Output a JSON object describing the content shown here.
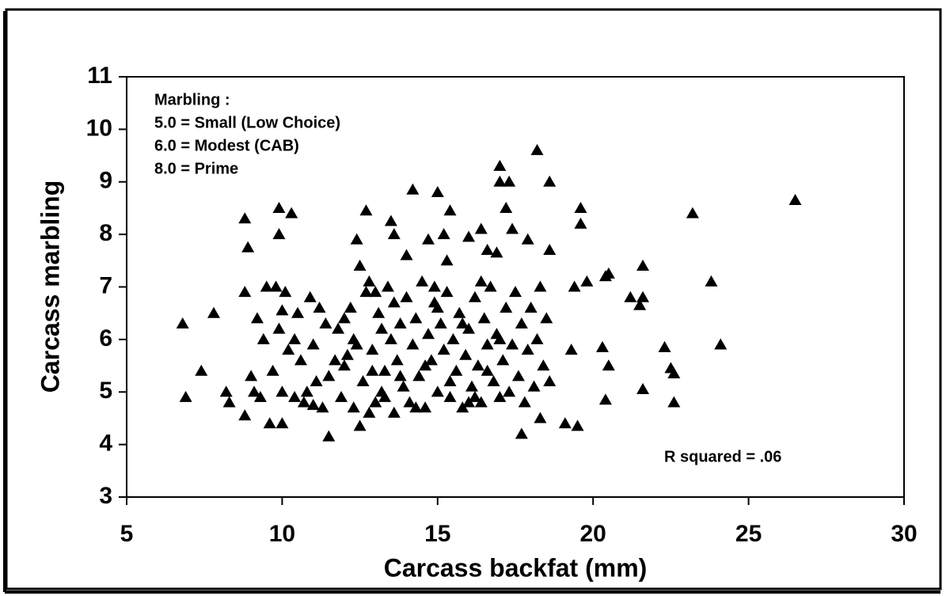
{
  "chart_data": {
    "type": "scatter",
    "xlabel": "Carcass backfat (mm)",
    "ylabel": "Carcass marbling",
    "notes": [
      "Marbling :",
      "5.0 = Small (Low Choice)",
      "6.0 = Modest (CAB)",
      "8.0 = Prime"
    ],
    "annotation": "R squared = .06",
    "color": "#000000",
    "marker": "triangle",
    "xlim": [
      5,
      30
    ],
    "xticks": [
      5,
      10,
      15,
      20,
      25,
      30
    ],
    "ylim": [
      3,
      11
    ],
    "yticks": [
      3,
      4,
      5,
      6,
      7,
      8,
      9,
      10,
      11
    ],
    "x": [
      6.8,
      6.9,
      7.4,
      7.8,
      8.2,
      8.3,
      8.8,
      8.9,
      8.8,
      8.8,
      9.0,
      9.2,
      9.3,
      9.5,
      9.6,
      9.9,
      9.9,
      9.8,
      10.0,
      10.0,
      10.0,
      10.3,
      10.4,
      10.6,
      10.9,
      11.0,
      11.5,
      11.4,
      12.0,
      12.3,
      12.4,
      12.5,
      12.7,
      12.8,
      13.0,
      13.2,
      13.6,
      13.5,
      14.2,
      14.0,
      14.7,
      15.0,
      15.2,
      15.4,
      15.3,
      16.0,
      16.4,
      16.6,
      16.9,
      17.0,
      17.0,
      17.2,
      17.3,
      17.4,
      17.9,
      18.2,
      18.6,
      18.6,
      19.6,
      19.6,
      19.4,
      19.8,
      19.3,
      19.1,
      19.5,
      20.4,
      20.5,
      20.3,
      20.5,
      20.4,
      21.2,
      21.5,
      21.6,
      21.6,
      21.6,
      22.3,
      22.5,
      22.6,
      22.6,
      23.2,
      23.8,
      24.1,
      26.5,
      17.7,
      18.3,
      16.0,
      12.5,
      10.5,
      10.2,
      10.8,
      11.0,
      11.2,
      11.5,
      11.8,
      11.9,
      12.1,
      12.2,
      12.3,
      12.6,
      12.7,
      12.9,
      13.1,
      13.2,
      13.3,
      13.4,
      13.5,
      13.6,
      13.7,
      13.8,
      13.9,
      14.0,
      14.1,
      14.2,
      14.3,
      14.4,
      14.5,
      14.6,
      14.7,
      14.8,
      14.9,
      15.0,
      15.1,
      15.2,
      15.3,
      15.4,
      15.5,
      15.6,
      15.7,
      15.8,
      15.9,
      16.0,
      16.1,
      16.2,
      16.3,
      16.4,
      16.5,
      16.6,
      16.7,
      16.8,
      16.9,
      17.0,
      17.1,
      17.2,
      17.3,
      17.4,
      17.5,
      17.6,
      17.7,
      17.8,
      17.9,
      18.0,
      18.1,
      18.2,
      18.3,
      18.4,
      18.5,
      18.6,
      10.1,
      9.4,
      9.1,
      9.7,
      10.7,
      11.3,
      11.7,
      12.0,
      12.4,
      13.0,
      13.3,
      13.8,
      14.3,
      14.6,
      15.0,
      15.4,
      15.8,
      16.2,
      16.6,
      17.0,
      12.8,
      11.1,
      10.4,
      9.9,
      14.9,
      16.4,
      13.6,
      12.9
    ],
    "y": [
      6.3,
      4.9,
      5.4,
      6.5,
      5.0,
      4.8,
      8.3,
      7.75,
      6.9,
      4.55,
      5.3,
      6.4,
      4.9,
      7.0,
      4.4,
      8.5,
      8.0,
      7.0,
      6.55,
      5.0,
      4.4,
      8.4,
      6.0,
      5.6,
      6.8,
      4.75,
      4.15,
      6.3,
      5.5,
      6.0,
      7.9,
      7.4,
      8.45,
      7.1,
      4.8,
      6.2,
      8.0,
      8.25,
      8.85,
      7.6,
      7.9,
      8.8,
      8.0,
      8.45,
      7.5,
      7.95,
      8.1,
      7.7,
      7.65,
      9.3,
      9.0,
      8.5,
      9.0,
      8.1,
      7.9,
      9.6,
      9.0,
      7.7,
      8.5,
      8.2,
      7.0,
      7.1,
      5.8,
      4.4,
      4.35,
      7.2,
      7.25,
      5.85,
      5.5,
      4.85,
      6.8,
      6.65,
      6.8,
      7.4,
      5.05,
      5.85,
      5.45,
      5.35,
      4.8,
      8.4,
      7.1,
      5.9,
      8.65,
      4.2,
      4.5,
      4.8,
      4.35,
      6.5,
      5.8,
      5.0,
      5.9,
      6.6,
      5.3,
      6.2,
      4.9,
      5.7,
      6.6,
      4.7,
      5.2,
      6.9,
      5.8,
      6.5,
      5.0,
      5.4,
      7.0,
      6.0,
      4.6,
      5.6,
      6.3,
      5.1,
      6.8,
      4.8,
      5.9,
      6.4,
      5.3,
      7.1,
      4.7,
      6.1,
      5.6,
      6.7,
      5.0,
      6.3,
      5.8,
      6.9,
      4.9,
      6.0,
      5.4,
      6.5,
      4.7,
      5.7,
      6.2,
      5.1,
      6.8,
      5.5,
      4.8,
      6.4,
      5.9,
      7.0,
      5.2,
      6.1,
      4.9,
      5.6,
      6.6,
      5.0,
      5.9,
      6.9,
      5.3,
      6.3,
      4.8,
      5.8,
      6.6,
      5.1,
      6.0,
      7.0,
      5.5,
      6.4,
      5.2,
      6.9,
      6.0,
      5.0,
      5.4,
      4.8,
      4.7,
      5.6,
      6.4,
      5.9,
      6.9,
      4.9,
      5.3,
      4.7,
      5.5,
      6.6,
      5.2,
      6.3,
      4.9,
      5.4,
      6.0,
      4.6,
      5.2,
      4.9,
      6.2,
      7.0,
      7.1,
      6.7,
      5.4
    ]
  }
}
